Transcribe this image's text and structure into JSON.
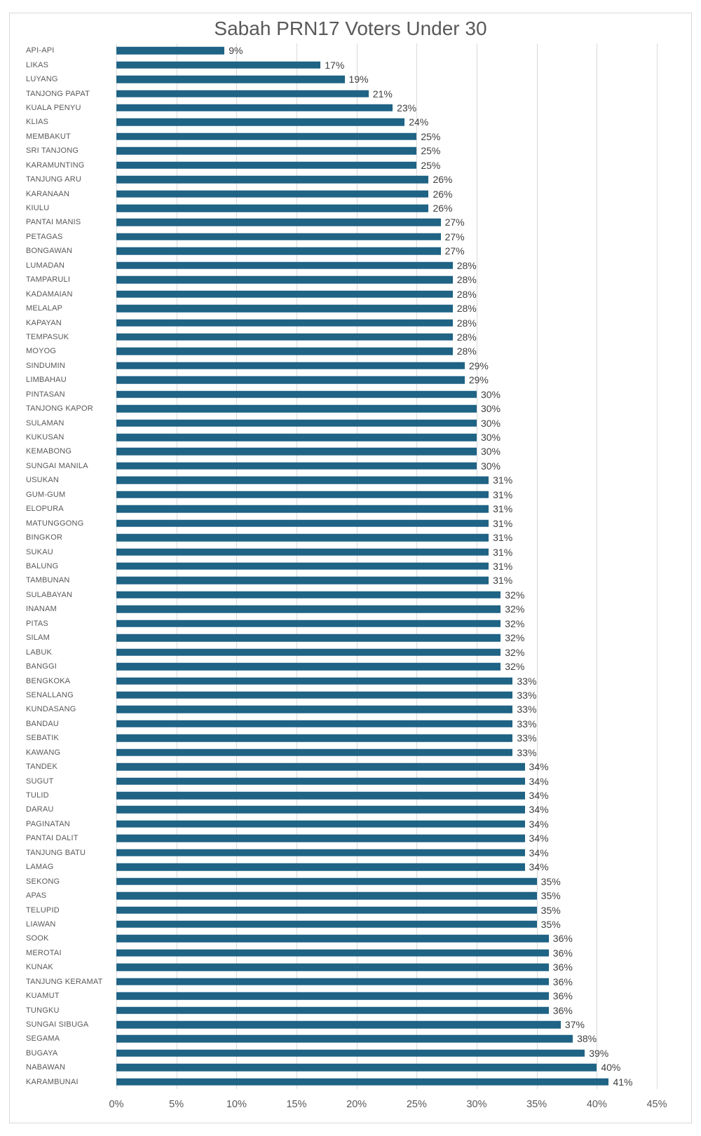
{
  "chart": {
    "colors": {
      "bar": "#1F6385",
      "gridline": "#D9D9D9",
      "axis_label": "#595959",
      "value_label": "#3F3F3F",
      "title": "#595959",
      "frame_border": "#D8D8D8",
      "background": "#FFFFFF"
    }
  },
  "chart_data": {
    "type": "bar",
    "orientation": "horizontal",
    "title": "Sabah PRN17 Voters Under 30",
    "xlabel": "",
    "ylabel": "",
    "xlim": [
      0,
      45
    ],
    "grid": true,
    "legend": false,
    "data_labels": true,
    "x_ticks": [
      "0%",
      "5%",
      "10%",
      "15%",
      "20%",
      "25%",
      "30%",
      "35%",
      "40%",
      "45%"
    ],
    "x_tick_values": [
      0,
      5,
      10,
      15,
      20,
      25,
      30,
      35,
      40,
      45
    ],
    "categories": [
      "API-API",
      "LIKAS",
      "LUYANG",
      "TANJONG PAPAT",
      "KUALA PENYU",
      "KLIAS",
      "MEMBAKUT",
      "SRI TANJONG",
      "KARAMUNTING",
      "TANJUNG ARU",
      "KARANAAN",
      "KIULU",
      "PANTAI MANIS",
      "PETAGAS",
      "BONGAWAN",
      "LUMADAN",
      "TAMPARULI",
      "KADAMAIAN",
      "MELALAP",
      "KAPAYAN",
      "TEMPASUK",
      "MOYOG",
      "SINDUMIN",
      "LIMBAHAU",
      "PINTASAN",
      "TANJONG KAPOR",
      "SULAMAN",
      "KUKUSAN",
      "KEMABONG",
      "SUNGAI MANILA",
      "USUKAN",
      "GUM-GUM",
      "ELOPURA",
      "MATUNGGONG",
      "BINGKOR",
      "SUKAU",
      "BALUNG",
      "TAMBUNAN",
      "SULABAYAN",
      "INANAM",
      "PITAS",
      "SILAM",
      "LABUK",
      "BANGGI",
      "BENGKOKA",
      "SENALLANG",
      "KUNDASANG",
      "BANDAU",
      "SEBATIK",
      "KAWANG",
      "TANDEK",
      "SUGUT",
      "TULID",
      "DARAU",
      "PAGINATAN",
      "PANTAI DALIT",
      "TANJUNG BATU",
      "LAMAG",
      "SEKONG",
      "APAS",
      "TELUPID",
      "LIAWAN",
      "SOOK",
      "MEROTAI",
      "KUNAK",
      "TANJUNG KERAMAT",
      "KUAMUT",
      "TUNGKU",
      "SUNGAI SIBUGA",
      "SEGAMA",
      "BUGAYA",
      "NABAWAN",
      "KARAMBUNAI"
    ],
    "values": [
      9,
      17,
      19,
      21,
      23,
      24,
      25,
      25,
      25,
      26,
      26,
      26,
      27,
      27,
      27,
      28,
      28,
      28,
      28,
      28,
      28,
      28,
      29,
      29,
      30,
      30,
      30,
      30,
      30,
      30,
      31,
      31,
      31,
      31,
      31,
      31,
      31,
      31,
      32,
      32,
      32,
      32,
      32,
      32,
      33,
      33,
      33,
      33,
      33,
      33,
      34,
      34,
      34,
      34,
      34,
      34,
      34,
      34,
      35,
      35,
      35,
      35,
      36,
      36,
      36,
      36,
      36,
      36,
      37,
      38,
      39,
      40,
      41
    ],
    "value_labels": [
      "9%",
      "17%",
      "19%",
      "21%",
      "23%",
      "24%",
      "25%",
      "25%",
      "25%",
      "26%",
      "26%",
      "26%",
      "27%",
      "27%",
      "27%",
      "28%",
      "28%",
      "28%",
      "28%",
      "28%",
      "28%",
      "28%",
      "29%",
      "29%",
      "30%",
      "30%",
      "30%",
      "30%",
      "30%",
      "30%",
      "31%",
      "31%",
      "31%",
      "31%",
      "31%",
      "31%",
      "31%",
      "31%",
      "32%",
      "32%",
      "32%",
      "32%",
      "32%",
      "32%",
      "33%",
      "33%",
      "33%",
      "33%",
      "33%",
      "33%",
      "34%",
      "34%",
      "34%",
      "34%",
      "34%",
      "34%",
      "34%",
      "34%",
      "35%",
      "35%",
      "35%",
      "35%",
      "36%",
      "36%",
      "36%",
      "36%",
      "36%",
      "36%",
      "37%",
      "38%",
      "39%",
      "40%",
      "41%"
    ]
  }
}
